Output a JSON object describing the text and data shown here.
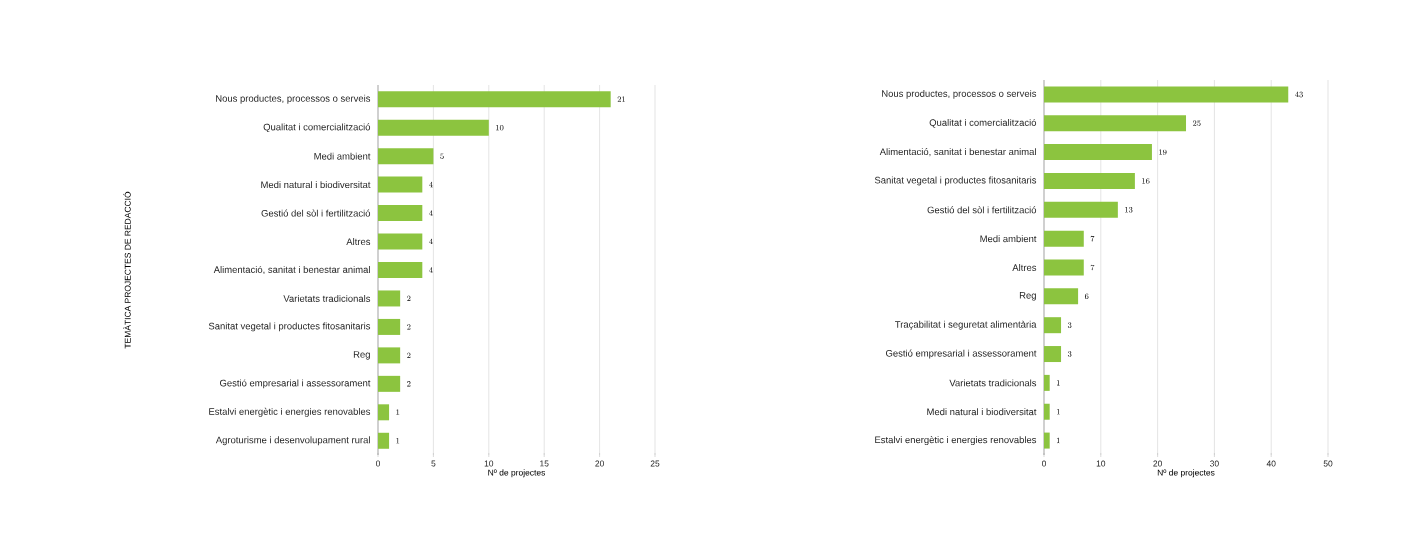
{
  "chart_data": [
    {
      "type": "bar",
      "orientation": "horizontal",
      "ylabel": "TEMÀTICA PROJECTES DE REDACCIÓ",
      "xlabel": "Nº de projectes",
      "categories": [
        "Nous productes, processos o serveis",
        "Qualitat i comercialització",
        "Medi ambient",
        "Medi natural i biodiversitat",
        "Gestió del sòl i fertilització",
        "Altres",
        "Alimentació, sanitat i benestar animal",
        "Varietats tradicionals",
        "Sanitat vegetal i productes fitosanitaris",
        "Reg",
        "Gestió empresarial i assessorament",
        "Estalvi energètic i energies renovables",
        "Agroturisme i desenvolupament rural"
      ],
      "values": [
        21,
        10,
        5,
        4,
        4,
        4,
        4,
        2,
        2,
        2,
        2,
        1,
        1
      ],
      "color": "#8cc43f",
      "xlim": [
        0,
        25
      ],
      "xticks": [
        0,
        5,
        10,
        15,
        20,
        25
      ],
      "grid": "x",
      "data_labels": true
    },
    {
      "type": "bar",
      "orientation": "horizontal",
      "xlabel": "Nº de projectes",
      "categories": [
        "Nous productes, processos o serveis",
        "Qualitat i comercialització",
        "Alimentació, sanitat i benestar animal",
        "Sanitat vegetal i productes fitosanitaris",
        "Gestió del sòl i fertilització",
        "Medi ambient",
        "Altres",
        "Reg",
        "Traçabilitat i seguretat alimentària",
        "Gestió empresarial i assessorament",
        "Varietats tradicionals",
        "Medi natural i biodiversitat",
        "Estalvi energètic i energies renovables"
      ],
      "values": [
        43,
        25,
        19,
        16,
        13,
        7,
        7,
        6,
        3,
        3,
        1,
        1,
        1
      ],
      "color": "#8cc43f",
      "xlim": [
        0,
        50
      ],
      "xticks": [
        0,
        10,
        20,
        30,
        40,
        50
      ],
      "grid": "x",
      "data_labels": true
    }
  ]
}
